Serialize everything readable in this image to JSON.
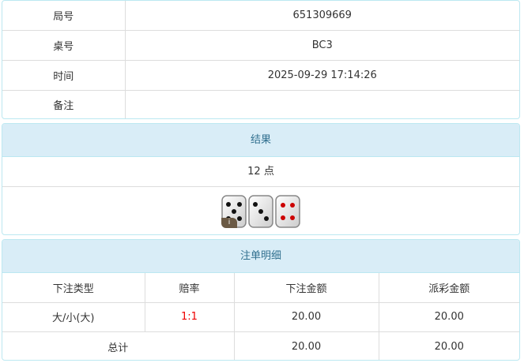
{
  "info": [
    {
      "label": "局号",
      "value": "651309669"
    },
    {
      "label": "桌号",
      "value": "BC3"
    },
    {
      "label": "时间",
      "value": "2025-09-29 17:14:26"
    },
    {
      "label": "备注",
      "value": ""
    }
  ],
  "result": {
    "title": "结果",
    "points": "12 点",
    "dice": [
      5,
      3,
      4
    ],
    "badge": "i"
  },
  "bets": {
    "title": "注单明细",
    "headers": [
      "下注类型",
      "赔率",
      "下注金额",
      "派彩金额"
    ],
    "rows": [
      {
        "type": "大/小(大)",
        "odds": "1:1",
        "amount": "20.00",
        "payout": "20.00"
      }
    ],
    "total": {
      "label": "总计",
      "amount": "20.00",
      "payout": "20.00"
    }
  },
  "colors": {
    "header_bg": "#d9edf7",
    "header_text": "#31708f",
    "odds": "#ee0000"
  }
}
